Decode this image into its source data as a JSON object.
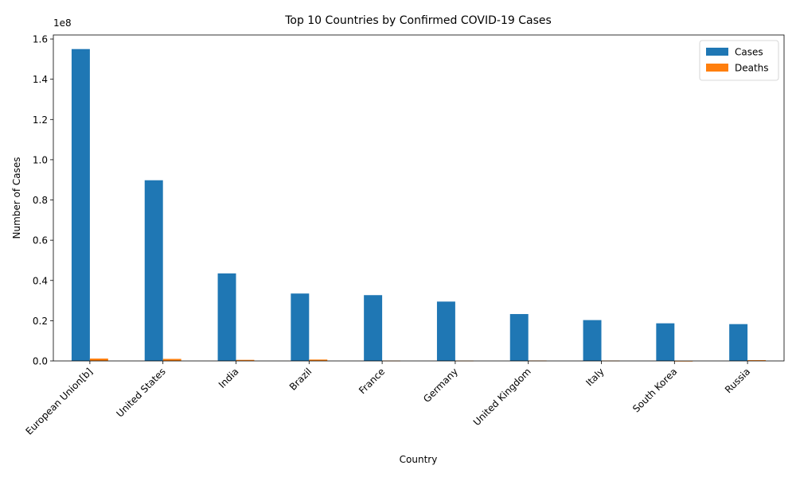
{
  "chart_data": {
    "type": "bar",
    "title": "Top 10 Countries by Confirmed COVID-19 Cases",
    "xlabel": "Country",
    "ylabel": "Number of Cases",
    "y_offset_label": "1e8",
    "ylim": [
      0,
      162000000
    ],
    "y_ticks": [
      0,
      20000000,
      40000000,
      60000000,
      80000000,
      100000000,
      120000000,
      140000000,
      160000000
    ],
    "y_tick_labels": [
      "0.0",
      "0.2",
      "0.4",
      "0.6",
      "0.8",
      "1.0",
      "1.2",
      "1.4",
      "1.6"
    ],
    "categories": [
      "European Union[b]",
      "United States",
      "India",
      "Brazil",
      "France",
      "Germany",
      "United Kingdom",
      "Italy",
      "South Korea",
      "Russia"
    ],
    "series": [
      {
        "name": "Cases",
        "color": "#1f77b4",
        "values": [
          155000000,
          89800000,
          43500000,
          33500000,
          32700000,
          29500000,
          23300000,
          20300000,
          18700000,
          18300000
        ]
      },
      {
        "name": "Deaths",
        "color": "#ff7f0e",
        "values": [
          1180000,
          1010000,
          525000,
          684000,
          157000,
          148000,
          208000,
          178000,
          25000,
          380000
        ]
      }
    ],
    "legend_position": "top-right",
    "grid": false
  }
}
